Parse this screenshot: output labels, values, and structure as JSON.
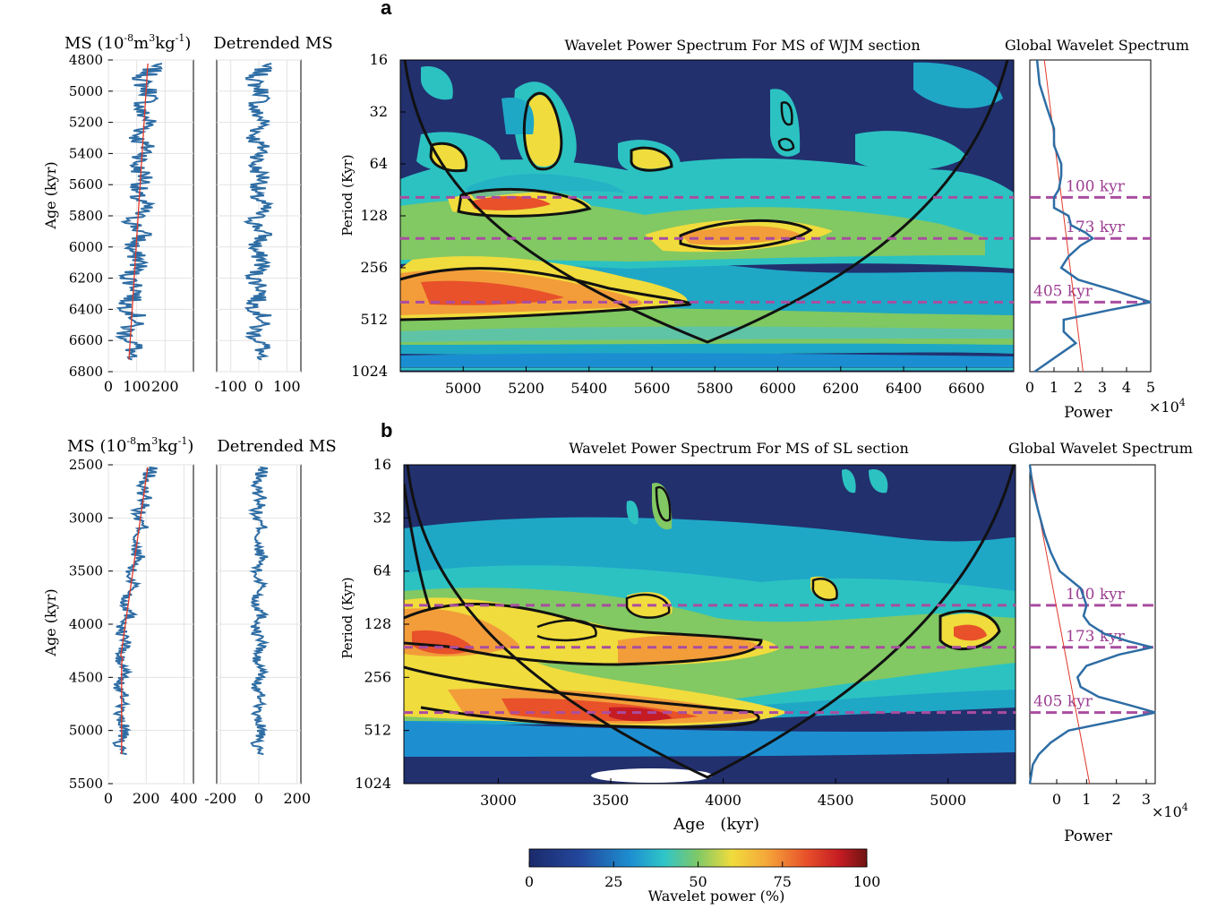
{
  "colors": {
    "line": "#2e6da4",
    "trend": "#e0382b",
    "dash": "#a94da0",
    "dashText": "#9b3d91",
    "contour": "#111111"
  },
  "chart_data": [
    {
      "id": "a",
      "panel_letter": "a",
      "ms_panel": {
        "title_prefix": "MS (",
        "title_unit_a": "10",
        "title_sup_a": "-8",
        "title_unit_b": "m",
        "title_sup_b": "3",
        "title_unit_c": "kg",
        "title_sup_c": "-1",
        "title_suffix": ")",
        "ylabel": "Age (kyr)",
        "yticks": [
          "4800",
          "5000",
          "5200",
          "5400",
          "5600",
          "5800",
          "6000",
          "6200",
          "6400",
          "6600",
          "6800"
        ],
        "xticks": [
          "0",
          "100",
          "200"
        ],
        "ylim": [
          4800,
          6800
        ],
        "xlim": [
          0,
          300
        ],
        "type": "line"
      },
      "detrended_panel": {
        "title": "Detrended MS",
        "xticks": [
          "-100",
          "0",
          "100"
        ],
        "xlim": [
          -150,
          150
        ]
      },
      "wavelet": {
        "type": "heatmap",
        "title": "Wavelet Power Spectrum For MS of WJM section",
        "ylabel": "Period (Kyr)",
        "xlabel": "",
        "xticks": [
          "5000",
          "5200",
          "5400",
          "5600",
          "5800",
          "6000",
          "6200",
          "6400",
          "6600"
        ],
        "xlim": [
          4800,
          6750
        ],
        "yticks": [
          "16",
          "32",
          "64",
          "128",
          "256",
          "512",
          "1024"
        ],
        "ylim": [
          16,
          1024
        ],
        "hotspots": [
          {
            "age": 5100,
            "period": 400,
            "power": 85,
            "note": "405 kyr band"
          },
          {
            "age": 5100,
            "period": 110,
            "power": 78
          },
          {
            "age": 5950,
            "period": 170,
            "power": 82,
            "note": "173 kyr band"
          },
          {
            "age": 5250,
            "period": 40,
            "power": 62
          },
          {
            "age": 4950,
            "period": 60,
            "power": 60
          },
          {
            "age": 5650,
            "period": 62,
            "power": 58
          },
          {
            "age": 6030,
            "period": 45,
            "power": 55
          }
        ]
      },
      "global": {
        "title": "Global Wavelet Spectrum",
        "xlabel": "Power",
        "xticks": [
          "0",
          "1",
          "2",
          "3",
          "4",
          "5"
        ],
        "multiplier": "×10",
        "multiplier_exp": "4",
        "xlim": [
          0,
          5
        ],
        "period": [
          16,
          22,
          30,
          40,
          50,
          64,
          75,
          90,
          100,
          115,
          128,
          145,
          160,
          173,
          190,
          220,
          256,
          300,
          350,
          405,
          450,
          512,
          600,
          700,
          800,
          1024
        ],
        "power": [
          0.3,
          0.4,
          0.7,
          1.0,
          1.0,
          1.3,
          1.3,
          1.2,
          1.0,
          1.0,
          1.6,
          1.7,
          2.3,
          2.6,
          2.1,
          1.6,
          1.3,
          2.0,
          3.6,
          5.0,
          3.3,
          1.4,
          1.4,
          1.9,
          1.3,
          0.2
        ],
        "significance_period": [
          16,
          1024
        ],
        "significance_power": [
          0.6,
          2.2
        ],
        "bands": [
          {
            "label": "100 kyr",
            "period": 100
          },
          {
            "label": "173 kyr",
            "period": 173
          },
          {
            "label": "405 kyr",
            "period": 405
          }
        ]
      }
    },
    {
      "id": "b",
      "panel_letter": "b",
      "ms_panel": {
        "title_prefix": "MS (",
        "title_unit_a": "10",
        "title_sup_a": "-8",
        "title_unit_b": "m",
        "title_sup_b": "3",
        "title_unit_c": "kg",
        "title_sup_c": "-1",
        "title_suffix": ")",
        "ylabel": "Age (kyr)",
        "yticks": [
          "2500",
          "3000",
          "3500",
          "4000",
          "4500",
          "5000",
          "5500"
        ],
        "xticks": [
          "0",
          "200",
          "400"
        ],
        "ylim": [
          2500,
          5500
        ],
        "xlim": [
          0,
          450
        ],
        "type": "line"
      },
      "detrended_panel": {
        "title": "Detrended MS",
        "xticks": [
          "-200",
          "0",
          "200"
        ],
        "xlim": [
          -220,
          220
        ]
      },
      "wavelet": {
        "type": "heatmap",
        "title": "Wavelet Power Spectrum For MS of SL section",
        "ylabel": "Period (Kyr)",
        "xlabel": "Age   (kyr)",
        "xticks": [
          "3000",
          "3500",
          "4000",
          "4500",
          "5000"
        ],
        "xlim": [
          2580,
          5300
        ],
        "yticks": [
          "16",
          "32",
          "64",
          "128",
          "256",
          "512",
          "1024"
        ],
        "ylim": [
          16,
          1024
        ],
        "hotspots": [
          {
            "age": 3550,
            "period": 430,
            "power": 88,
            "note": "405 kyr band"
          },
          {
            "age": 2700,
            "period": 170,
            "power": 85
          },
          {
            "age": 3100,
            "period": 390,
            "power": 80
          },
          {
            "age": 3700,
            "period": 180,
            "power": 78,
            "note": "173 kyr band"
          },
          {
            "age": 5080,
            "period": 160,
            "power": 80
          },
          {
            "age": 3300,
            "period": 140,
            "power": 60
          },
          {
            "age": 3750,
            "period": 105,
            "power": 60
          },
          {
            "age": 4400,
            "period": 85,
            "power": 55
          }
        ]
      },
      "global": {
        "title": "Global Wavelet Spectrum",
        "xlabel": "Power",
        "xticks": [
          "0",
          "1",
          "2",
          "3"
        ],
        "multiplier": "×10",
        "multiplier_exp": "4",
        "xlim": [
          -0.9,
          3.3
        ],
        "period": [
          16,
          22,
          30,
          40,
          50,
          64,
          80,
          100,
          115,
          128,
          145,
          160,
          173,
          190,
          220,
          256,
          290,
          330,
          370,
          405,
          440,
          512,
          600,
          700,
          800,
          1024
        ],
        "power": [
          -0.9,
          -0.8,
          -0.6,
          -0.4,
          -0.2,
          0.1,
          0.8,
          1.0,
          0.9,
          1.1,
          1.6,
          2.4,
          3.2,
          2.1,
          1.0,
          0.7,
          0.8,
          1.4,
          2.5,
          3.3,
          2.3,
          0.4,
          -0.2,
          -0.6,
          -0.8,
          -0.9
        ],
        "significance_period": [
          16,
          1024
        ],
        "significance_power": [
          -0.9,
          1.1
        ],
        "bands": [
          {
            "label": "100 kyr",
            "period": 100
          },
          {
            "label": "173 kyr",
            "period": 173
          },
          {
            "label": "405 kyr",
            "period": 405
          }
        ]
      }
    }
  ],
  "colorbar": {
    "ticks": [
      "0",
      "25",
      "50",
      "75",
      "100"
    ],
    "label": "Wavelet power (%)"
  }
}
